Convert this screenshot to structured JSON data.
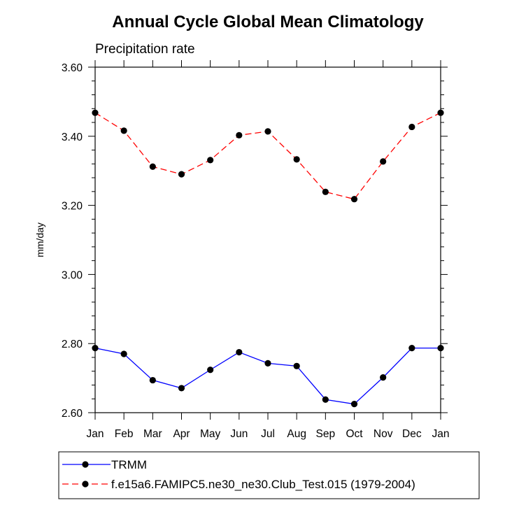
{
  "chart_data": {
    "type": "line",
    "title": "Annual Cycle Global Mean Climatology",
    "subtitle": "Precipitation rate",
    "xlabel": "",
    "ylabel": "mm/day",
    "ylim": [
      2.6,
      3.6
    ],
    "yticks": [
      "2.60",
      "2.80",
      "3.00",
      "3.20",
      "3.40",
      "3.60"
    ],
    "categories": [
      "Jan",
      "Feb",
      "Mar",
      "Apr",
      "May",
      "Jun",
      "Jul",
      "Aug",
      "Sep",
      "Oct",
      "Nov",
      "Dec",
      "Jan"
    ],
    "series": [
      {
        "name": "TRMM",
        "color": "#0000ff",
        "style": "solid",
        "values": [
          2.787,
          2.77,
          2.694,
          2.671,
          2.724,
          2.775,
          2.743,
          2.735,
          2.638,
          2.625,
          2.702,
          2.787,
          2.787
        ]
      },
      {
        "name": "f.e15a6.FAMIPC5.ne30_ne30.Club_Test.015 (1979-2004)",
        "color": "#ff0000",
        "style": "dashed",
        "values": [
          3.468,
          3.416,
          3.312,
          3.29,
          3.331,
          3.403,
          3.414,
          3.333,
          3.239,
          3.218,
          3.327,
          3.427,
          3.468
        ]
      }
    ],
    "legend": "bottom"
  }
}
